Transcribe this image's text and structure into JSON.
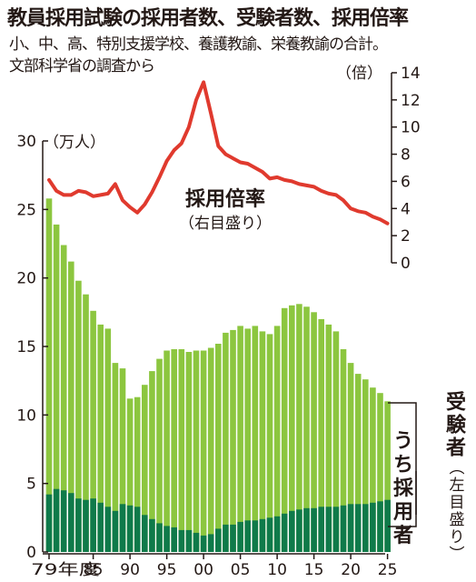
{
  "header": {
    "title": "教員採用試験の採用者数、受験者数、採用倍率",
    "subtitle_lines": [
      "小、中、高、特別支援学校、養護教諭、栄養教諭の合計。",
      "文部科学省の調査から"
    ]
  },
  "chart_data": {
    "type": "bar",
    "x_tick_labels": [
      "79年度",
      "85",
      "90",
      "95",
      "00",
      "05",
      "10",
      "15",
      "20",
      "25"
    ],
    "x": [
      1979,
      1980,
      1981,
      1982,
      1983,
      1984,
      1985,
      1986,
      1987,
      1988,
      1989,
      1990,
      1991,
      1992,
      1993,
      1994,
      1995,
      1996,
      1997,
      1998,
      1999,
      2000,
      2001,
      2002,
      2003,
      2004,
      2005,
      2006,
      2007,
      2008,
      2009,
      2010,
      2011,
      2012,
      2013,
      2014,
      2015,
      2016,
      2017,
      2018,
      2019,
      2020,
      2021,
      2022,
      2023,
      2024,
      2025
    ],
    "left_axis": {
      "unit_label": "（万人）",
      "ylim": [
        0,
        30
      ],
      "ticks": [
        "0",
        "5",
        "10",
        "15",
        "20",
        "25",
        "30"
      ]
    },
    "right_axis": {
      "unit_label": "（倍）",
      "ylim": [
        0,
        14
      ],
      "ticks": [
        "0",
        "2",
        "4",
        "6",
        "8",
        "10",
        "12",
        "14"
      ]
    },
    "series": [
      {
        "name": "受験者（左目盛り）",
        "kind": "bar",
        "axis": "left",
        "color": "#8cc63f",
        "values": [
          25.8,
          23.9,
          22.4,
          21.2,
          19.8,
          18.8,
          17.6,
          16.6,
          16.3,
          13.8,
          13.4,
          11.2,
          11.3,
          12.2,
          13.2,
          14.1,
          14.7,
          14.8,
          14.8,
          14.6,
          14.7,
          14.7,
          14.9,
          15.2,
          16.0,
          16.2,
          16.5,
          16.3,
          16.5,
          16.1,
          15.9,
          16.5,
          17.8,
          18.0,
          18.1,
          17.9,
          17.5,
          17.0,
          16.6,
          16.1,
          14.8,
          13.8,
          13.0,
          12.6,
          12.0,
          11.6,
          11.0
        ]
      },
      {
        "name": "うち採用者",
        "kind": "bar",
        "axis": "left",
        "color": "#0f7a4a",
        "values": [
          4.2,
          4.6,
          4.5,
          4.3,
          3.9,
          3.8,
          3.9,
          3.6,
          3.3,
          3.0,
          3.5,
          3.4,
          3.3,
          2.7,
          2.4,
          2.1,
          1.9,
          1.8,
          1.6,
          1.6,
          1.4,
          1.2,
          1.3,
          1.7,
          2.0,
          2.0,
          2.2,
          2.3,
          2.3,
          2.4,
          2.5,
          2.6,
          2.8,
          3.0,
          3.1,
          3.2,
          3.2,
          3.3,
          3.3,
          3.3,
          3.4,
          3.5,
          3.5,
          3.5,
          3.6,
          3.7,
          3.8
        ]
      },
      {
        "name": "採用倍率（右目盛り）",
        "kind": "line",
        "axis": "right",
        "color": "#e03a2e",
        "values": [
          6.1,
          5.3,
          5.0,
          5.0,
          5.3,
          5.2,
          4.9,
          5.0,
          5.1,
          5.8,
          4.6,
          4.1,
          3.7,
          4.3,
          5.2,
          6.3,
          7.5,
          8.3,
          8.8,
          10.0,
          12.0,
          13.3,
          11.0,
          8.6,
          8.0,
          7.7,
          7.4,
          7.3,
          7.0,
          6.7,
          6.2,
          6.3,
          6.1,
          6.0,
          5.8,
          5.7,
          5.6,
          5.3,
          5.1,
          5.0,
          4.6,
          4.0,
          3.8,
          3.7,
          3.4,
          3.2,
          2.9
        ]
      }
    ],
    "labels": {
      "ratio": "採用倍率",
      "ratio_note": "（右目盛り）",
      "applicants": "受験者",
      "applicants_note": "（左目盛り）",
      "hired": "うち採用者"
    },
    "grid": false,
    "legend": "direct labels"
  }
}
